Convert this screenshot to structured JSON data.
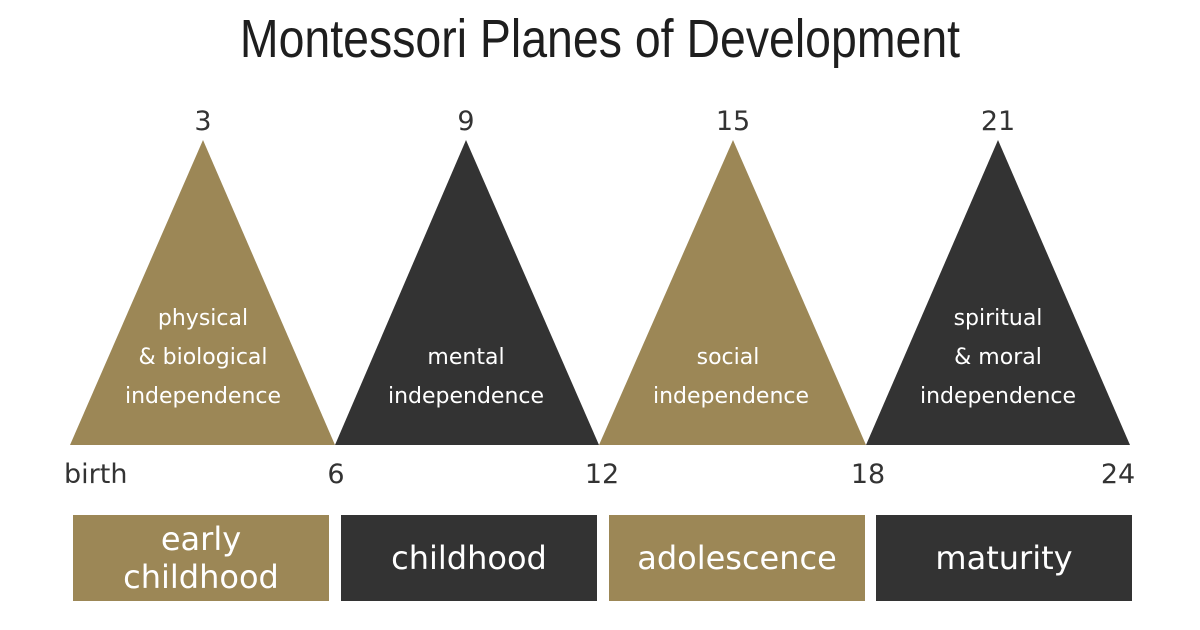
{
  "title": "Montessori Planes of Development",
  "colors": {
    "gold": "#9c8756",
    "dark": "#333333",
    "text": "#333333",
    "background": "#ffffff"
  },
  "planes": [
    {
      "peak_age": "3",
      "start_label": "birth",
      "description": [
        "physical",
        "& biological",
        "independence"
      ],
      "stage_lines": [
        "early",
        "childhood"
      ],
      "color": "gold"
    },
    {
      "peak_age": "9",
      "start_label": "6",
      "description": [
        "mental",
        "independence"
      ],
      "stage_lines": [
        "childhood"
      ],
      "color": "dark"
    },
    {
      "peak_age": "15",
      "start_label": "12",
      "description": [
        "social",
        "independence"
      ],
      "stage_lines": [
        "adolescence"
      ],
      "color": "gold"
    },
    {
      "peak_age": "21",
      "start_label": "18",
      "description": [
        "spiritual",
        "& moral",
        "independence"
      ],
      "stage_lines": [
        "maturity"
      ],
      "color": "dark"
    }
  ],
  "end_label": "24"
}
